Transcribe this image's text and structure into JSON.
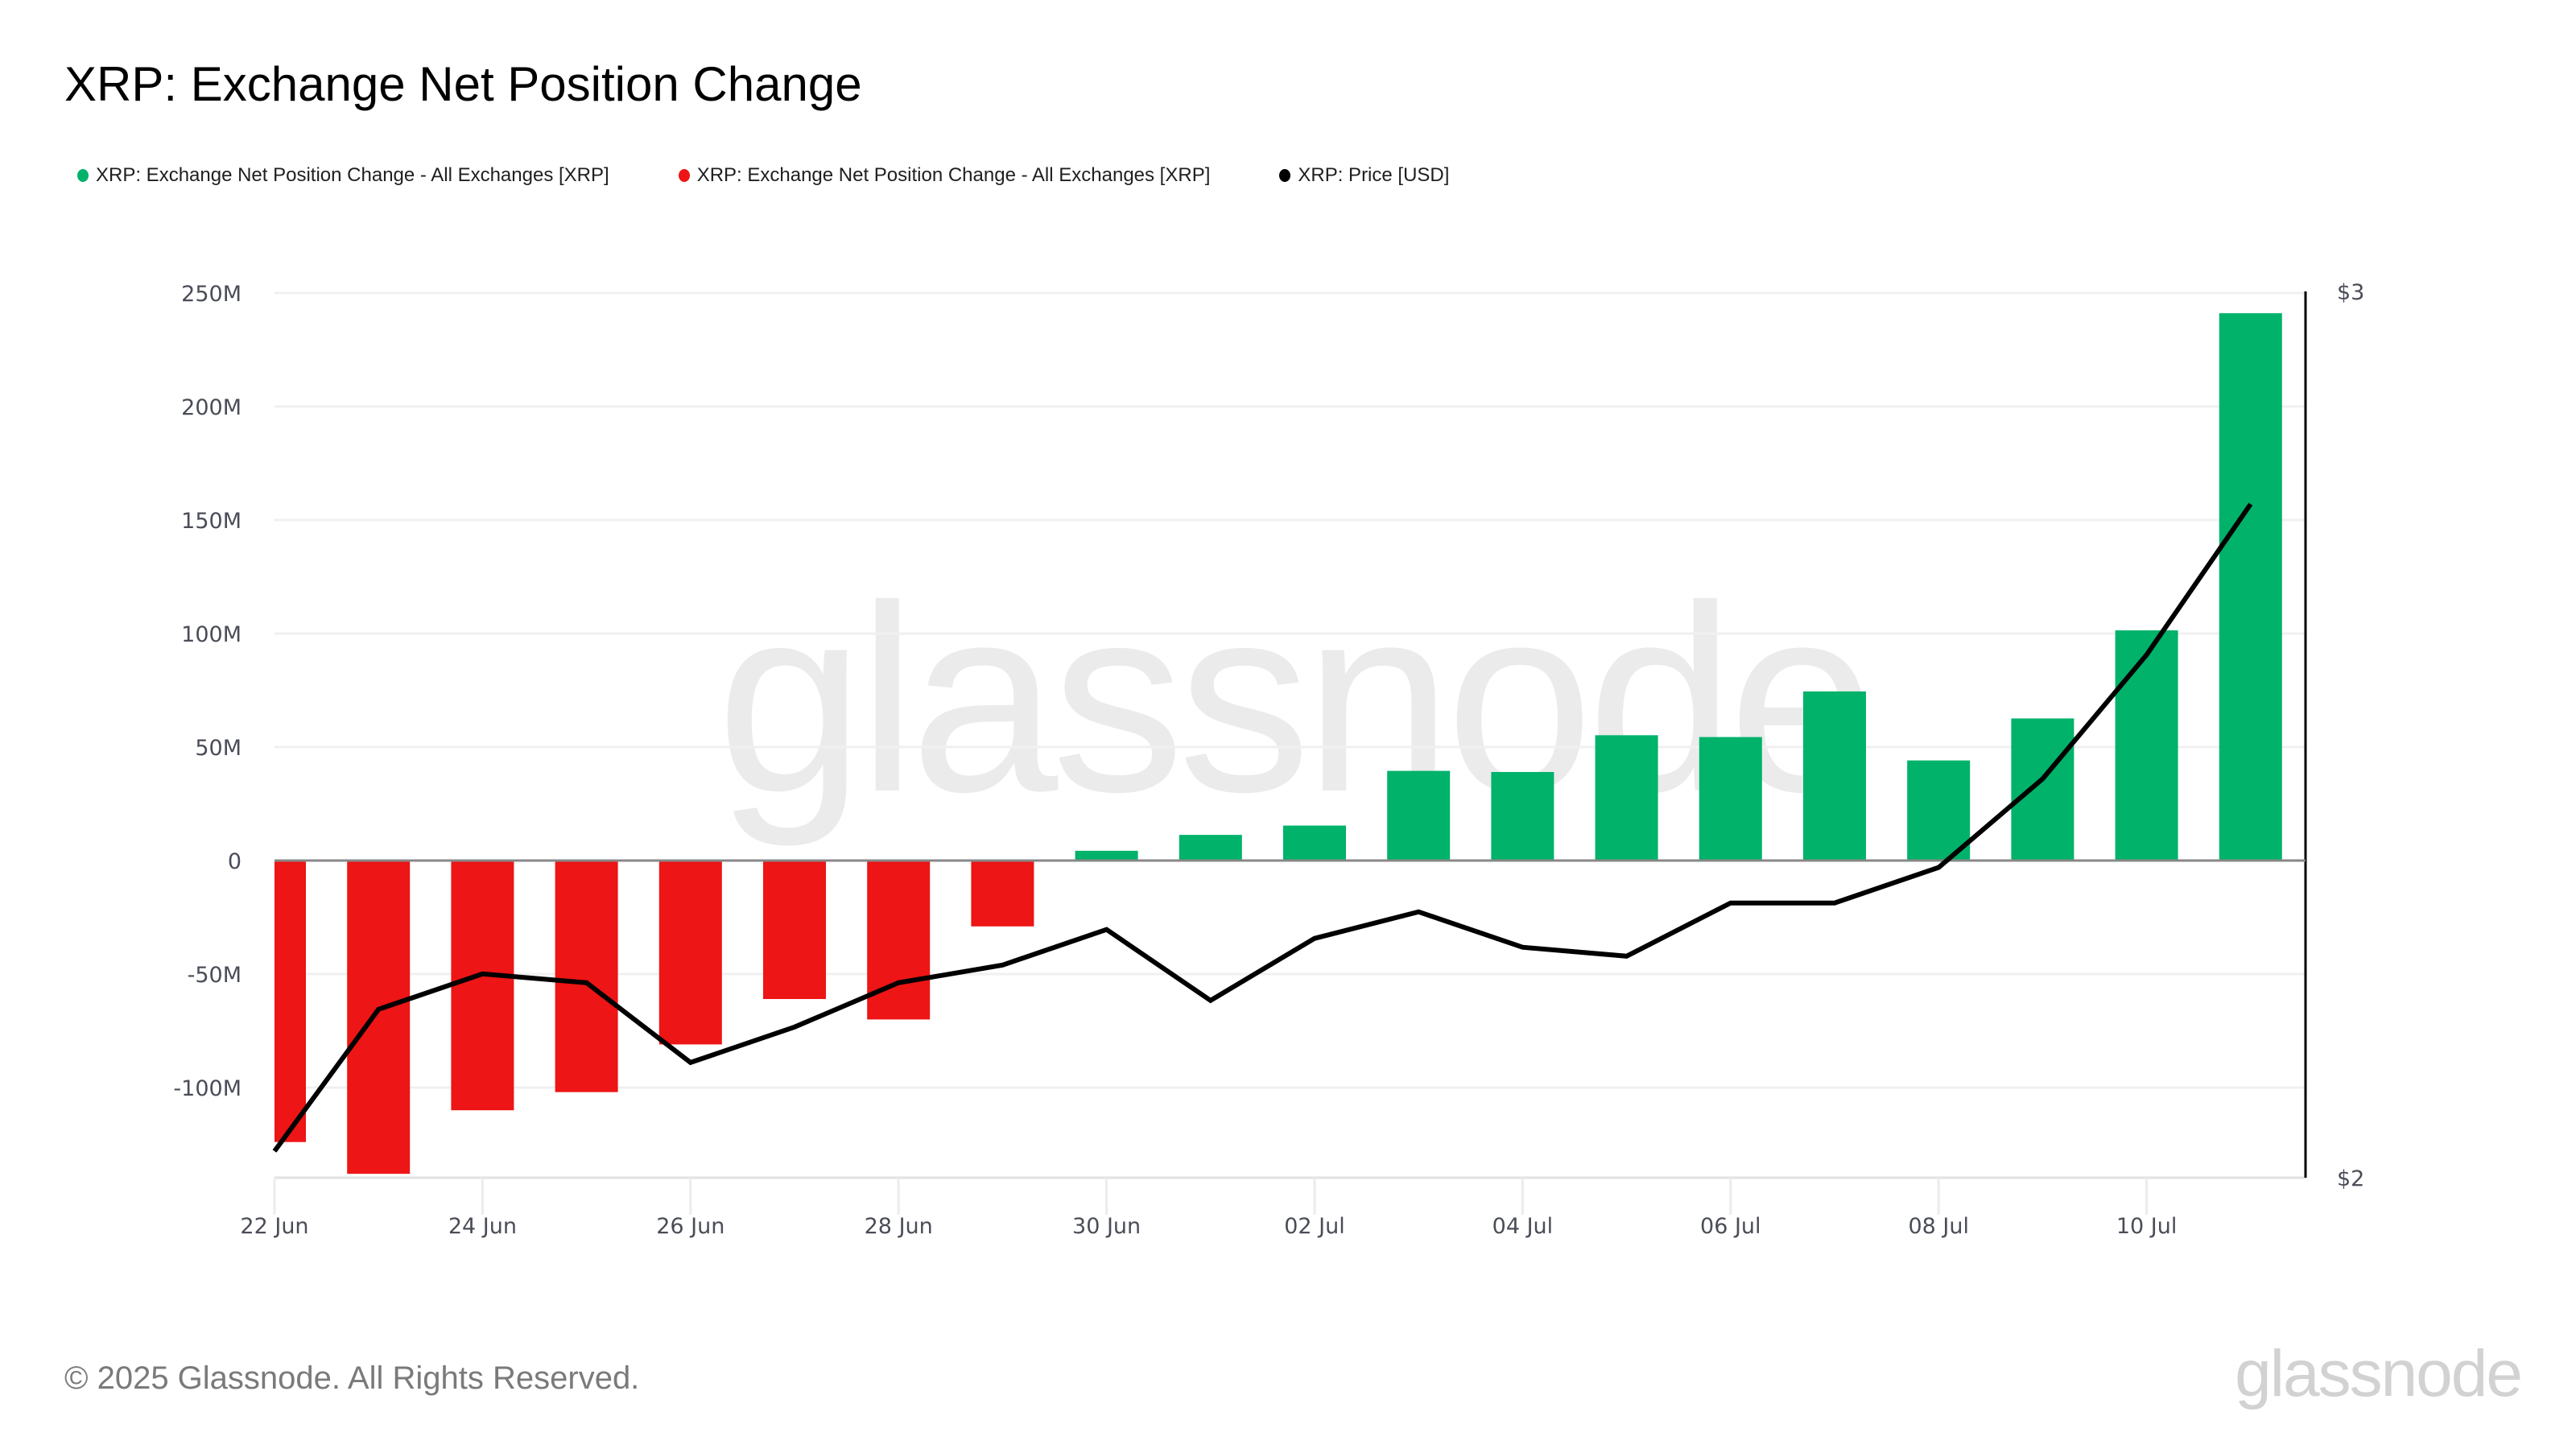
{
  "title": "XRP: Exchange Net Position Change",
  "legend": [
    {
      "label": "XRP: Exchange Net Position Change - All Exchanges [XRP]",
      "color": "#00b26a"
    },
    {
      "label": "XRP: Exchange Net Position Change - All Exchanges [XRP]",
      "color": "#ed1515"
    },
    {
      "label": "XRP: Price [USD]",
      "color": "#000000"
    }
  ],
  "watermark": "glassnode",
  "footer": {
    "copyright": "© 2025 Glassnode. All Rights Reserved.",
    "logo": "glassnode"
  },
  "colors": {
    "positive": "#00b26a",
    "negative": "#ed1515",
    "price_line": "#000000",
    "grid": "#f0f0f0",
    "axis_text": "#4a4d57"
  },
  "chart_data": {
    "type": "bar",
    "title": "XRP: Exchange Net Position Change",
    "xlabel": "",
    "ylabel": "",
    "categories": [
      "22 Jun",
      "23 Jun",
      "24 Jun",
      "25 Jun",
      "26 Jun",
      "27 Jun",
      "28 Jun",
      "29 Jun",
      "30 Jun",
      "01 Jul",
      "02 Jul",
      "03 Jul",
      "04 Jul",
      "05 Jul",
      "06 Jul",
      "07 Jul",
      "08 Jul",
      "09 Jul",
      "10 Jul",
      "11 Jul"
    ],
    "x_tick_labels": [
      "22 Jun",
      "24 Jun",
      "26 Jun",
      "28 Jun",
      "30 Jun",
      "02 Jul",
      "04 Jul",
      "06 Jul",
      "08 Jul",
      "10 Jul"
    ],
    "series": [
      {
        "name": "XRP: Exchange Net Position Change - All Exchanges [XRP]",
        "type": "bar",
        "axis": "left",
        "unit": "XRP",
        "values": [
          -124000000,
          -138000000,
          -110000000,
          -102000000,
          -81000000,
          -61000000,
          -70000000,
          -29000000,
          4300000,
          11300000,
          15400000,
          39500000,
          39000000,
          55200000,
          54400000,
          74500000,
          44100000,
          62600000,
          101400000,
          241100000
        ]
      },
      {
        "name": "XRP: Price [USD]",
        "type": "line",
        "axis": "right",
        "unit": "USD",
        "values": [
          2.03,
          2.19,
          2.23,
          2.22,
          2.13,
          2.17,
          2.22,
          2.24,
          2.28,
          2.2,
          2.27,
          2.3,
          2.26,
          2.25,
          2.31,
          2.31,
          2.35,
          2.45,
          2.59,
          2.76
        ]
      }
    ],
    "left_axis": {
      "ticks": [
        250000000,
        200000000,
        150000000,
        100000000,
        50000000,
        0,
        -50000000,
        -100000000
      ],
      "tick_labels": [
        "250M",
        "200M",
        "150M",
        "100M",
        "50M",
        "0",
        "-50M",
        "-100M"
      ],
      "ylim": [
        -140000000,
        250000000
      ]
    },
    "right_axis": {
      "ticks": [
        3,
        2
      ],
      "tick_labels": [
        "$3",
        "$2"
      ],
      "ylim": [
        2,
        3
      ]
    },
    "grid": true,
    "legend_position": "top-left"
  }
}
